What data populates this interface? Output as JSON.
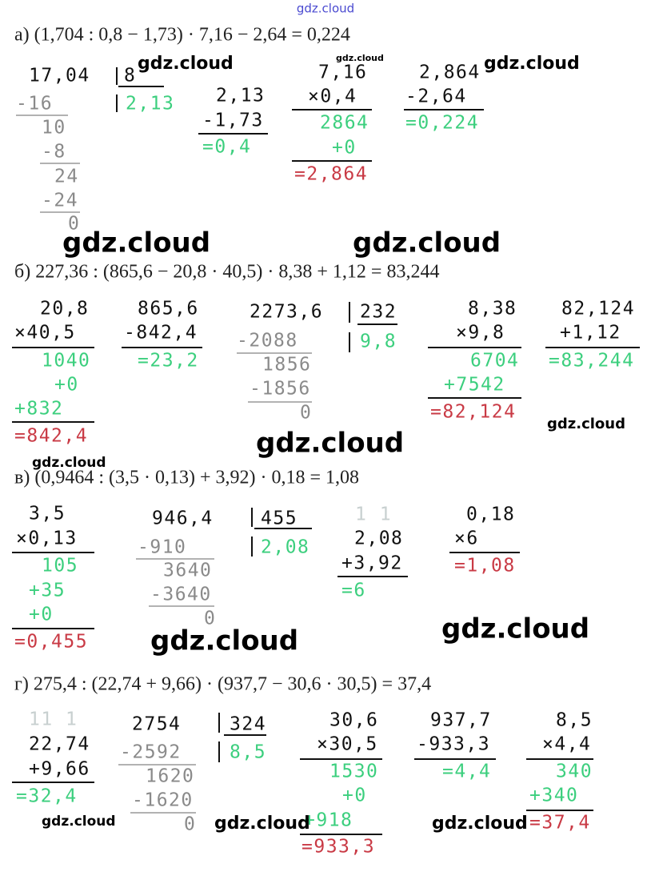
{
  "watermark": "gdz.cloud",
  "sections": [
    {
      "equation": "а) (1,704 : 0,8 − 1,73) · 7,16 − 2,64 = 0,224",
      "work": [
        "17,04",
        "8",
        "2,13",
        "-16",
        "10",
        "-8",
        "24",
        "-24",
        "0",
        "2,13",
        "-1,73",
        "=0,4",
        "7,16",
        "×0,4",
        "2864",
        "+0",
        "=2,864",
        "2,864",
        "-2,64",
        "=0,224"
      ],
      "watermarks": [
        "gdz.cloud",
        "gdz.cloud",
        "gdz.cloud",
        "gdz.cloud",
        "gdz.cloud"
      ]
    },
    {
      "equation": "б) 227,36 : (865,6 − 20,8 · 40,5) · 8,38 + 1,12 = 83,244",
      "work": [
        "20,8",
        "×40,5",
        "1040",
        "+0",
        "+832",
        "=842,4",
        "865,6",
        "-842,4",
        "=23,2",
        "2273,6",
        "232",
        "9,8",
        "-2088",
        "1856",
        "-1856",
        "0",
        "8,38",
        "×9,8",
        "6704",
        "+7542",
        "=82,124",
        "82,124",
        "+1,12",
        "=83,244"
      ],
      "watermarks": [
        "gdz.cloud",
        "gdz.cloud",
        "gdz.cloud"
      ]
    },
    {
      "equation": "в) (0,9464 : (3,5 · 0,13) + 3,92) · 0,18 = 1,08",
      "work": [
        "3,5",
        "×0,13",
        "105",
        "+35",
        "+0",
        "=0,455",
        "946,4",
        "455",
        "2,08",
        "-910",
        "3640",
        "-3640",
        "0",
        "1 1",
        "2,08",
        "+3,92",
        "=6",
        "0,18",
        "×6",
        "=1,08"
      ],
      "watermarks": [
        "gdz.cloud",
        "gdz.cloud"
      ]
    },
    {
      "equation": "г) 275,4 : (22,74 + 9,66) · (937,7 − 30,6 · 30,5) = 37,4",
      "work": [
        "11 1",
        "22,74",
        "+9,66",
        "=32,4",
        "2754",
        "324",
        "8,5",
        "-2592",
        "1620",
        "-1620",
        "0",
        "30,6",
        "×30,5",
        "1530",
        "+0",
        "+918",
        "=933,3",
        "937,7",
        "-933,3",
        "=4,4",
        "8,5",
        "×4,4",
        "340",
        "+340",
        "=37,4"
      ],
      "watermarks": [
        "gdz.cloud",
        "gdz.cloud",
        "gdz.cloud"
      ]
    }
  ]
}
